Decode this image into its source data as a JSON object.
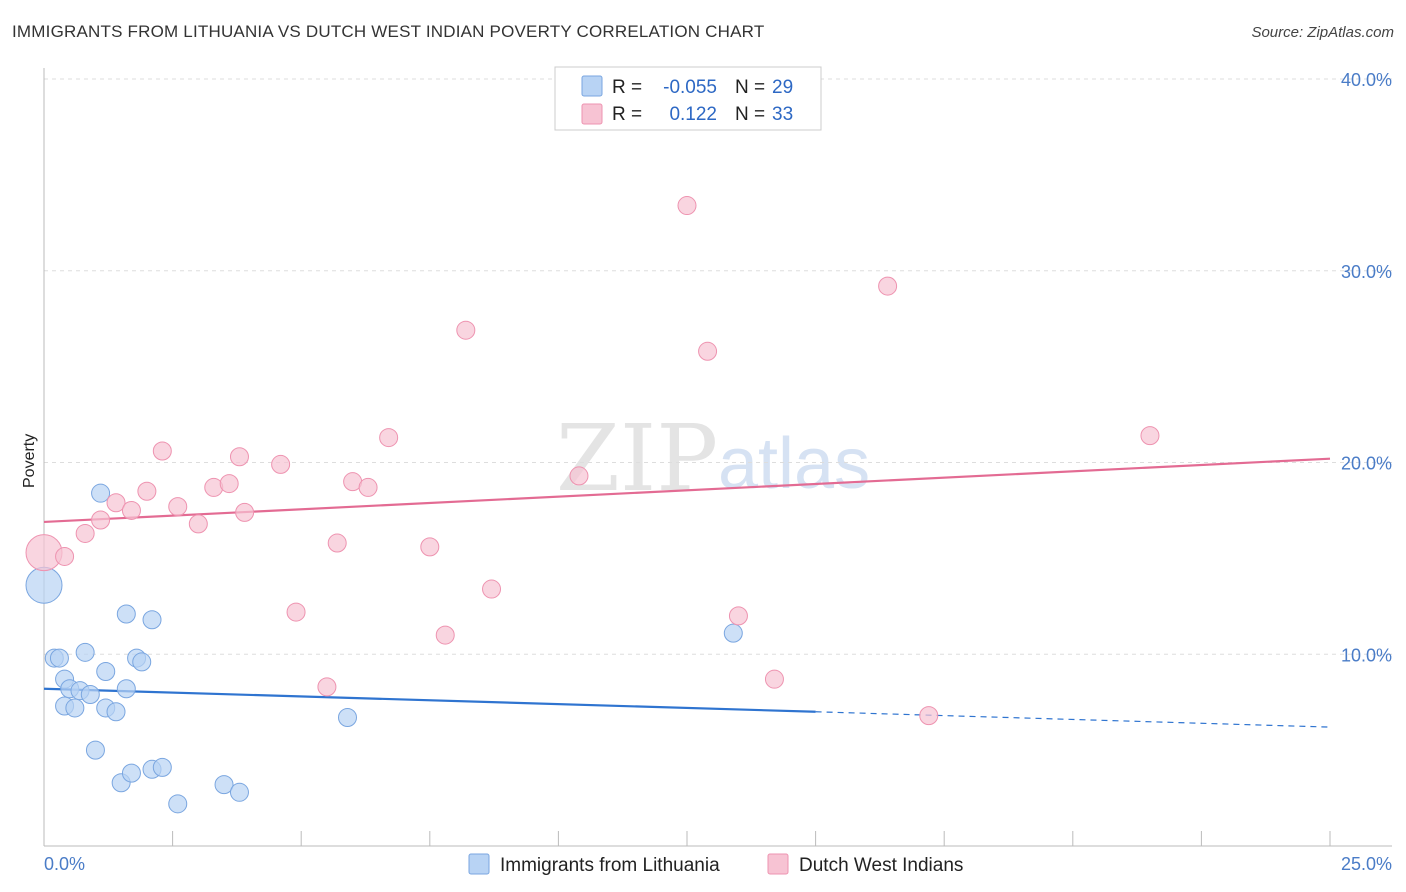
{
  "title": "IMMIGRANTS FROM LITHUANIA VS DUTCH WEST INDIAN POVERTY CORRELATION CHART",
  "source": "Source: ZipAtlas.com",
  "watermark": {
    "zip": "ZIP",
    "atlas": "atlas"
  },
  "colors": {
    "blue_fill": "#b8d3f4",
    "blue_stroke": "#7aa6e0",
    "blue_line": "#2f74d0",
    "pink_fill": "#f7c3d3",
    "pink_stroke": "#ee93b0",
    "pink_line": "#e36b93",
    "grid": "#dddddd",
    "tick_label": "#4a7cc7"
  },
  "legend": {
    "rows": [
      {
        "r_label": "R =",
        "r_value": "-0.055",
        "n_label": "N =",
        "n_value": "29",
        "series": "blue"
      },
      {
        "r_label": "R =",
        "r_value": "0.122",
        "n_label": "N =",
        "n_value": "33",
        "series": "pink"
      }
    ]
  },
  "chart_data": {
    "type": "scatter",
    "title": "IMMIGRANTS FROM LITHUANIA VS DUTCH WEST INDIAN POVERTY CORRELATION CHART",
    "xlabel": "",
    "ylabel": "Poverty",
    "xlim": [
      0,
      25
    ],
    "ylim": [
      0,
      40
    ],
    "x_tick_labels": [
      "0.0%",
      "25.0%"
    ],
    "y_ticks": [
      10,
      20,
      30,
      40
    ],
    "y_tick_labels": [
      "10.0%",
      "20.0%",
      "30.0%",
      "40.0%"
    ],
    "grid": true,
    "legend_position": "top-center",
    "series": [
      {
        "name": "Immigrants from Lithuania",
        "color": "blue",
        "r": -0.055,
        "n": 29,
        "trend": {
          "x_start": 0,
          "y_start": 8.2,
          "x_end": 15,
          "y_end": 7.0,
          "dash_to_x": 25,
          "dash_to_y": 6.2
        },
        "points": [
          {
            "x": 0.0,
            "y": 13.6,
            "big": true
          },
          {
            "x": 0.2,
            "y": 9.8
          },
          {
            "x": 0.3,
            "y": 9.8
          },
          {
            "x": 0.4,
            "y": 8.7
          },
          {
            "x": 0.4,
            "y": 7.3
          },
          {
            "x": 0.5,
            "y": 8.2
          },
          {
            "x": 0.6,
            "y": 7.2
          },
          {
            "x": 0.7,
            "y": 8.1
          },
          {
            "x": 0.8,
            "y": 10.1
          },
          {
            "x": 0.9,
            "y": 7.9
          },
          {
            "x": 1.0,
            "y": 5.0
          },
          {
            "x": 1.1,
            "y": 18.4
          },
          {
            "x": 1.2,
            "y": 7.2
          },
          {
            "x": 1.2,
            "y": 9.1
          },
          {
            "x": 1.4,
            "y": 7.0
          },
          {
            "x": 1.5,
            "y": 3.3
          },
          {
            "x": 1.6,
            "y": 12.1
          },
          {
            "x": 1.6,
            "y": 8.2
          },
          {
            "x": 1.7,
            "y": 3.8
          },
          {
            "x": 1.8,
            "y": 9.8
          },
          {
            "x": 1.9,
            "y": 9.6
          },
          {
            "x": 2.1,
            "y": 4.0
          },
          {
            "x": 2.1,
            "y": 11.8
          },
          {
            "x": 2.3,
            "y": 4.1
          },
          {
            "x": 2.6,
            "y": 2.2
          },
          {
            "x": 3.5,
            "y": 3.2
          },
          {
            "x": 3.8,
            "y": 2.8
          },
          {
            "x": 5.9,
            "y": 6.7
          },
          {
            "x": 13.4,
            "y": 11.1
          }
        ]
      },
      {
        "name": "Dutch West Indians",
        "color": "pink",
        "r": 0.122,
        "n": 33,
        "trend": {
          "x_start": 0,
          "y_start": 16.9,
          "x_end": 25,
          "y_end": 20.2
        },
        "points": [
          {
            "x": 0.0,
            "y": 15.3,
            "big": true
          },
          {
            "x": 0.4,
            "y": 15.1
          },
          {
            "x": 0.8,
            "y": 16.3
          },
          {
            "x": 1.1,
            "y": 17.0
          },
          {
            "x": 1.4,
            "y": 17.9
          },
          {
            "x": 1.7,
            "y": 17.5
          },
          {
            "x": 2.0,
            "y": 18.5
          },
          {
            "x": 2.3,
            "y": 20.6
          },
          {
            "x": 2.6,
            "y": 17.7
          },
          {
            "x": 3.0,
            "y": 16.8
          },
          {
            "x": 3.3,
            "y": 18.7
          },
          {
            "x": 3.6,
            "y": 18.9
          },
          {
            "x": 3.9,
            "y": 17.4
          },
          {
            "x": 3.8,
            "y": 20.3
          },
          {
            "x": 4.6,
            "y": 19.9
          },
          {
            "x": 4.9,
            "y": 12.2
          },
          {
            "x": 5.5,
            "y": 8.3
          },
          {
            "x": 5.7,
            "y": 15.8
          },
          {
            "x": 6.0,
            "y": 19.0
          },
          {
            "x": 6.3,
            "y": 18.7
          },
          {
            "x": 6.7,
            "y": 21.3
          },
          {
            "x": 7.5,
            "y": 15.6
          },
          {
            "x": 7.8,
            "y": 11.0
          },
          {
            "x": 8.2,
            "y": 26.9
          },
          {
            "x": 8.7,
            "y": 13.4
          },
          {
            "x": 10.4,
            "y": 19.3
          },
          {
            "x": 12.5,
            "y": 33.4
          },
          {
            "x": 12.9,
            "y": 25.8
          },
          {
            "x": 13.5,
            "y": 12.0
          },
          {
            "x": 14.2,
            "y": 8.7
          },
          {
            "x": 16.4,
            "y": 29.2
          },
          {
            "x": 17.2,
            "y": 6.8
          },
          {
            "x": 21.5,
            "y": 21.4
          }
        ]
      }
    ]
  }
}
